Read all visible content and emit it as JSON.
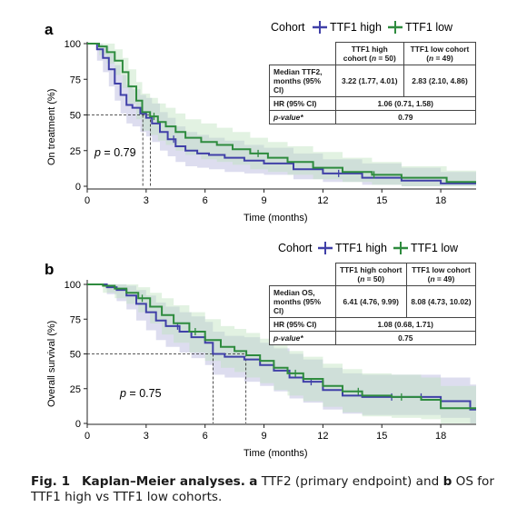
{
  "colors": {
    "ttf1_high": "#4040a8",
    "ttf1_low": "#2e8b3e",
    "ci_high": "#b4b4dc",
    "ci_low": "#bfe3bf"
  },
  "caption": {
    "figlabel": "Fig. 1",
    "title": "Kaplan–Meier analyses.",
    "a_letter": "a",
    "a_text": " TTF2 (primary endpoint) and ",
    "b_letter": "b",
    "b_text": " OS for TTF1 high vs TTF1 low cohorts."
  },
  "panels": [
    {
      "letter": "a",
      "legend": {
        "title": "Cohort",
        "high": "TTF1 high",
        "low": "TTF1 low"
      },
      "table": {
        "col_high": "TTF1 high cohort (n = 50)",
        "col_high_1": "TTF1 high",
        "col_high_2": "cohort (n = 50)",
        "col_low": "TTF1 low cohort (n = 49)",
        "col_low_1": "TTF1 low cohort",
        "col_low_2": "(n = 49)",
        "row1_label_1": "Median TTF2,",
        "row1_label_2": "months (95% CI)",
        "row1_high": "3.22 (1.77, 4.01)",
        "row1_low": "2.83 (2.10, 4.86)",
        "row2_label": "HR (95% CI)",
        "row2_value": "1.06 (0.71, 1.58)",
        "row3_label": "p-value*",
        "row3_value": "0.79"
      },
      "pvalue_label": "p = 0.79"
    },
    {
      "letter": "b",
      "legend": {
        "title": "Cohort",
        "high": "TTF1 high",
        "low": "TTF1 low"
      },
      "table": {
        "col_high_1": "TTF1 high cohort",
        "col_high_2": "(n = 50)",
        "col_low_1": "TTF1 low cohort",
        "col_low_2": "(n = 49)",
        "row1_label_1": "Median OS,",
        "row1_label_2": "months (95% CI)",
        "row1_high": "6.41 (4.76, 9.99)",
        "row1_low": "8.08 (4.73, 10.02)",
        "row2_label": "HR (95% CI)",
        "row2_value": "1.08 (0.68, 1.71)",
        "row3_label": "p-value*",
        "row3_value": "0.75"
      },
      "pvalue_label": "p = 0.75"
    }
  ],
  "chart_data": [
    {
      "type": "line",
      "step": true,
      "xlabel": "Time (months)",
      "ylabel": "On treatment (%)",
      "xlim": [
        0,
        19.8
      ],
      "ylim": [
        0,
        100
      ],
      "xticks": [
        0,
        3,
        6,
        9,
        12,
        15,
        18
      ],
      "yticks": [
        0,
        25,
        50,
        75,
        100
      ],
      "median_lines": [
        3.22,
        2.83
      ],
      "series": [
        {
          "name": "TTF1 high",
          "x": [
            0,
            0.5,
            0.8,
            1.1,
            1.4,
            1.7,
            2.0,
            2.3,
            2.7,
            3.0,
            3.3,
            3.7,
            4.1,
            4.5,
            5.0,
            5.6,
            6.2,
            7.0,
            8.0,
            9.0,
            10.5,
            12.0,
            14.0,
            16.0,
            18.0,
            19.8
          ],
          "y": [
            100,
            96,
            90,
            82,
            72,
            64,
            57,
            55,
            51,
            48,
            44,
            38,
            33,
            28,
            25,
            23,
            22,
            20,
            18,
            16,
            12,
            9,
            6,
            4,
            2,
            2
          ],
          "ci_upper": [
            100,
            100,
            98,
            93,
            85,
            78,
            71,
            68,
            64,
            62,
            58,
            52,
            48,
            42,
            38,
            36,
            34,
            32,
            29,
            27,
            23,
            19,
            16,
            13,
            10,
            10
          ],
          "ci_lower": [
            100,
            88,
            80,
            70,
            60,
            51,
            44,
            42,
            38,
            35,
            31,
            25,
            21,
            17,
            14,
            13,
            12,
            10,
            9,
            8,
            5,
            3,
            1,
            0,
            0,
            0
          ],
          "censor_x": [
            4.4,
            12.8
          ]
        },
        {
          "name": "TTF1 low",
          "x": [
            0,
            0.6,
            1.0,
            1.4,
            1.8,
            2.1,
            2.5,
            2.8,
            3.2,
            3.6,
            4.0,
            4.5,
            5.0,
            5.8,
            6.6,
            7.4,
            8.3,
            9.2,
            10.2,
            11.5,
            13.0,
            14.5,
            16.0,
            18.3,
            19.8
          ],
          "y": [
            100,
            98,
            94,
            88,
            80,
            70,
            60,
            52,
            49,
            45,
            42,
            38,
            34,
            31,
            29,
            26,
            23,
            20,
            17,
            13,
            10,
            8,
            6,
            3,
            3
          ],
          "ci_upper": [
            100,
            100,
            100,
            96,
            90,
            82,
            73,
            65,
            62,
            58,
            55,
            51,
            47,
            44,
            41,
            38,
            34,
            31,
            28,
            24,
            20,
            17,
            14,
            11,
            11
          ],
          "ci_lower": [
            100,
            92,
            86,
            78,
            69,
            58,
            47,
            39,
            36,
            32,
            29,
            25,
            22,
            19,
            17,
            15,
            12,
            10,
            8,
            5,
            3,
            1,
            0,
            0,
            0
          ],
          "censor_x": [
            3.4,
            8.7,
            14.6
          ]
        }
      ]
    },
    {
      "type": "line",
      "step": true,
      "xlabel": "Time (months)",
      "ylabel": "Overall survival (%)",
      "xlim": [
        0,
        19.8
      ],
      "ylim": [
        0,
        100
      ],
      "xticks": [
        0,
        3,
        6,
        9,
        12,
        15,
        18
      ],
      "yticks": [
        0,
        25,
        50,
        75,
        100
      ],
      "median_lines": [
        6.41,
        8.08
      ],
      "series": [
        {
          "name": "TTF1 high",
          "x": [
            0,
            1.0,
            1.5,
            2.0,
            2.5,
            3.0,
            3.5,
            4.0,
            4.7,
            5.3,
            6.0,
            6.4,
            7.0,
            8.0,
            8.8,
            9.5,
            10.3,
            11.0,
            12.0,
            13.0,
            14.0,
            15.0,
            16.5,
            18.0,
            19.5,
            19.8
          ],
          "y": [
            100,
            98,
            96,
            92,
            86,
            80,
            74,
            70,
            66,
            62,
            58,
            50,
            48,
            46,
            42,
            38,
            33,
            30,
            24,
            20,
            19,
            19,
            19,
            16,
            10,
            10
          ],
          "ci_upper": [
            100,
            100,
            100,
            99,
            96,
            92,
            87,
            84,
            80,
            77,
            73,
            66,
            63,
            62,
            58,
            54,
            50,
            46,
            40,
            36,
            35,
            35,
            35,
            33,
            28,
            28
          ],
          "ci_lower": [
            100,
            93,
            88,
            82,
            74,
            67,
            60,
            55,
            51,
            47,
            42,
            35,
            33,
            30,
            27,
            23,
            18,
            15,
            10,
            7,
            6,
            6,
            6,
            4,
            0,
            0
          ],
          "censor_x": [
            4.6,
            11.4,
            15.5,
            17.0
          ]
        },
        {
          "name": "TTF1 low",
          "x": [
            0,
            0.8,
            1.4,
            2.0,
            2.6,
            3.2,
            3.8,
            4.4,
            5.2,
            6.0,
            6.8,
            7.5,
            8.1,
            8.8,
            9.5,
            10.2,
            11.0,
            12.0,
            13.0,
            14.0,
            15.5,
            17.0,
            18.0,
            19.8
          ],
          "y": [
            100,
            99,
            97,
            94,
            90,
            84,
            78,
            72,
            66,
            60,
            55,
            52,
            49,
            45,
            40,
            36,
            32,
            27,
            23,
            20,
            19,
            17,
            11,
            11
          ],
          "ci_upper": [
            100,
            100,
            100,
            100,
            98,
            94,
            90,
            85,
            80,
            75,
            70,
            68,
            65,
            61,
            56,
            52,
            48,
            43,
            39,
            36,
            35,
            33,
            27,
            27
          ],
          "ci_lower": [
            100,
            94,
            90,
            86,
            80,
            72,
            64,
            58,
            51,
            45,
            40,
            37,
            33,
            29,
            24,
            20,
            16,
            12,
            8,
            5,
            4,
            3,
            0,
            0
          ],
          "censor_x": [
            2.8,
            5.5,
            10.6,
            13.8,
            16.0
          ]
        }
      ]
    }
  ]
}
